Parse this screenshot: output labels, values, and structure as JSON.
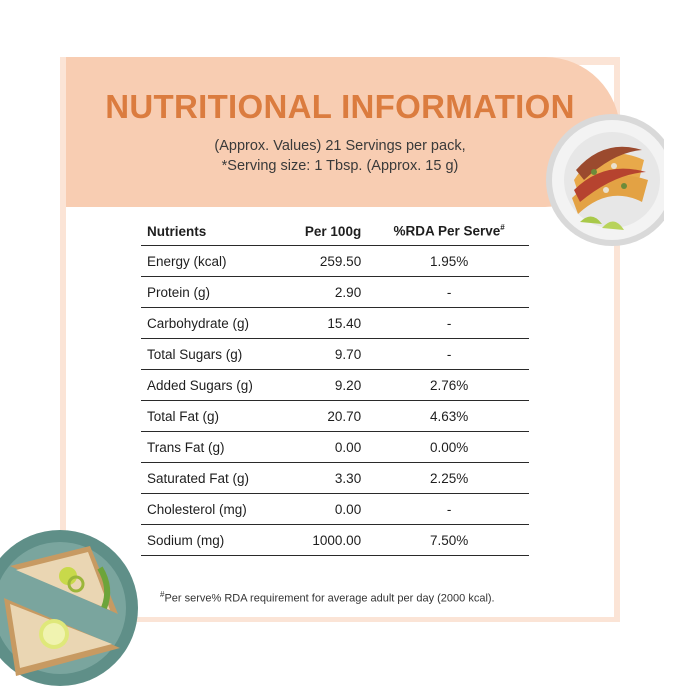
{
  "header": {
    "title": "NUTRITIONAL INFORMATION",
    "subtitle_line1": "(Approx. Values) 21 Servings per pack,",
    "subtitle_line2": "*Serving size: 1 Tbsp. (Approx. 15 g)"
  },
  "table": {
    "columns": {
      "nutrients": "Nutrients",
      "per100": "Per 100g",
      "rda": "%RDA Per Serve",
      "rda_mark": "#"
    },
    "rows": [
      {
        "name": "Energy (kcal)",
        "per100": "259.50",
        "rda": "1.95%"
      },
      {
        "name": "Protein (g)",
        "per100": "2.90",
        "rda": "-"
      },
      {
        "name": "Carbohydrate (g)",
        "per100": "15.40",
        "rda": "-"
      },
      {
        "name": "Total Sugars (g)",
        "per100": "9.70",
        "rda": "-"
      },
      {
        "name": "Added Sugars (g)",
        "per100": "9.20",
        "rda": "2.76%"
      },
      {
        "name": "Total Fat (g)",
        "per100": "20.70",
        "rda": "4.63%"
      },
      {
        "name": "Trans Fat (g)",
        "per100": "0.00",
        "rda": "0.00%"
      },
      {
        "name": "Saturated Fat (g)",
        "per100": "3.30",
        "rda": "2.25%"
      },
      {
        "name": "Cholesterol (mg)",
        "per100": "0.00",
        "rda": "-"
      },
      {
        "name": "Sodium (mg)",
        "per100": "1000.00",
        "rda": "7.50%"
      }
    ]
  },
  "footnote": {
    "mark": "#",
    "text": "Per serve% RDA requirement for average adult per day (2000 kcal)."
  },
  "colors": {
    "accent": "#db7c3f",
    "header_bg": "#f8cdb2",
    "card_border": "#fbe4d6"
  },
  "images": {
    "top_plate": "tacos-plate-image",
    "bottom_plate": "sandwich-plate-image"
  }
}
